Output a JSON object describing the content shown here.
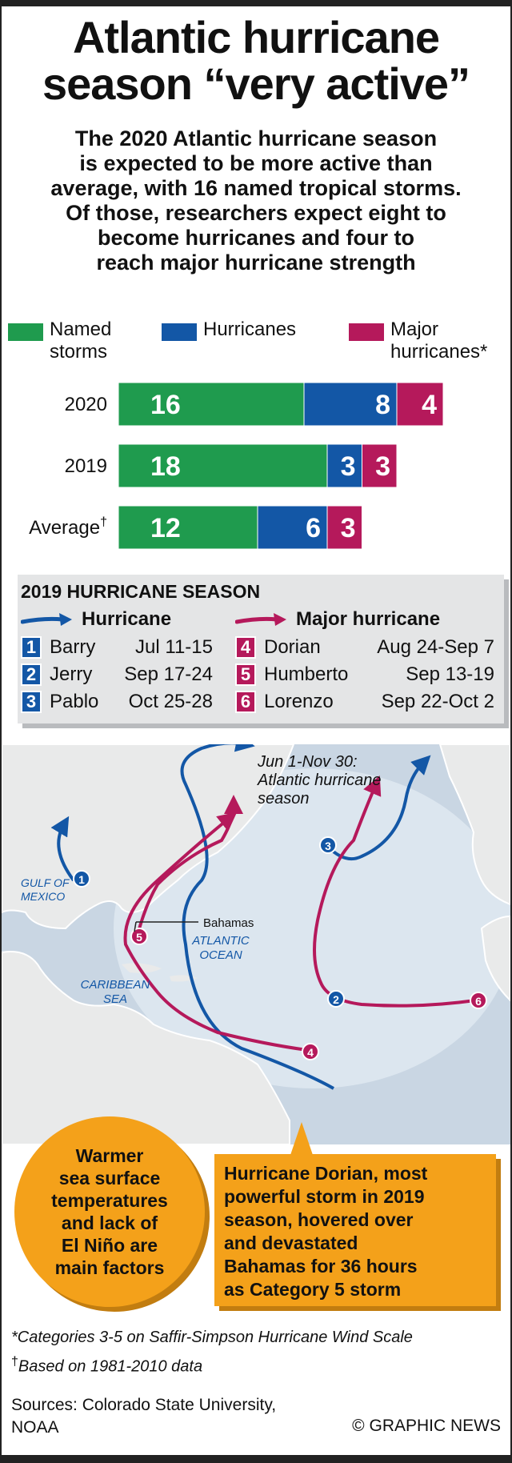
{
  "header": {
    "title": "Atlantic hurricane\nseason “very active”",
    "subtitle": "The 2020 Atlantic hurricane season\nis expected to be more active than\naverage, with 16 named tropical storms.\nOf those, researchers expect eight to\nbecome hurricanes and four to\nreach major hurricane strength"
  },
  "legend": [
    {
      "label": "Named\nstorms",
      "color": "#1f9b4e"
    },
    {
      "label": "Hurricanes",
      "color": "#1357a6"
    },
    {
      "label": "Major\nhurricanes*",
      "color": "#b5195b"
    }
  ],
  "chart_data": {
    "type": "bar",
    "orientation": "horizontal",
    "stacked": true,
    "categories": [
      "2020",
      "2019",
      "Average"
    ],
    "category_marks": [
      "",
      "",
      "†"
    ],
    "series": [
      {
        "name": "Named storms",
        "values": [
          16,
          18,
          12
        ],
        "color": "#1f9b4e"
      },
      {
        "name": "Hurricanes",
        "values": [
          8,
          3,
          6
        ],
        "color": "#1357a6"
      },
      {
        "name": "Major hurricanes*",
        "values": [
          4,
          3,
          3
        ],
        "color": "#b5195b"
      }
    ],
    "legend_position": "top"
  },
  "season_2019": {
    "title": "2019 HURRICANE SEASON",
    "hurricane_label": "Hurricane",
    "major_label": "Major hurricane",
    "hurricane_color": "#1357a6",
    "major_color": "#b5195b",
    "hurricanes": [
      {
        "num": "1",
        "name": "Barry",
        "dates": "Jul 11-15"
      },
      {
        "num": "2",
        "name": "Jerry",
        "dates": "Sep 17-24"
      },
      {
        "num": "3",
        "name": "Pablo",
        "dates": "Oct 25-28"
      }
    ],
    "majors": [
      {
        "num": "4",
        "name": "Dorian",
        "dates": "Aug 24-Sep 7"
      },
      {
        "num": "5",
        "name": "Humberto",
        "dates": "Sep 13-19"
      },
      {
        "num": "6",
        "name": "Lorenzo",
        "dates": "Sep 22-Oct 2"
      }
    ]
  },
  "map": {
    "season_note": "Jun 1-Nov 30:\nAtlantic hurricane\nseason",
    "gulf_label": "GULF OF\nMEXICO",
    "atlantic_label": "ATLANTIC\nOCEAN",
    "caribbean_label": "CARIBBEAN\nSEA",
    "bahamas_label": "Bahamas"
  },
  "factors_note": "Warmer\nsea surface\ntemperatures\nand lack of\nEl Niño are\nmain factors",
  "dorian_note": "Hurricane Dorian, most\npowerful storm in 2019\nseason, hovered over\nand devastated\nBahamas for 36 hours\nas Category 5 storm",
  "footnotes": {
    "categories": "*Categories 3-5 on Saffir-Simpson Hurricane Wind Scale",
    "dagger": "†",
    "based_on": "Based on 1981-2010 data"
  },
  "sources": "Sources: Colorado State University,\nNOAA",
  "credit": "© GRAPHIC NEWS"
}
